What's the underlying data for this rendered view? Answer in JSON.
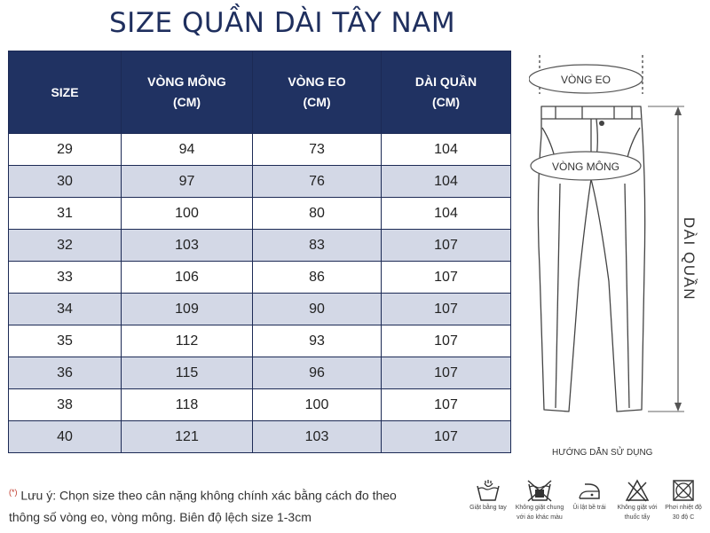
{
  "title": "SIZE QUẦN DÀI TÂY NAM",
  "table": {
    "headers": [
      {
        "line1": "SIZE",
        "line2": ""
      },
      {
        "line1": "VÒNG MÔNG",
        "line2": "(CM)"
      },
      {
        "line1": "VÒNG EO",
        "line2": "(CM)"
      },
      {
        "line1": "DÀI QUẦN",
        "line2": "(CM)"
      }
    ],
    "rows": [
      [
        "29",
        "94",
        "73",
        "104"
      ],
      [
        "30",
        "97",
        "76",
        "104"
      ],
      [
        "31",
        "100",
        "80",
        "104"
      ],
      [
        "32",
        "103",
        "83",
        "107"
      ],
      [
        "33",
        "106",
        "86",
        "107"
      ],
      [
        "34",
        "109",
        "90",
        "107"
      ],
      [
        "35",
        "112",
        "93",
        "107"
      ],
      [
        "36",
        "115",
        "96",
        "107"
      ],
      [
        "38",
        "118",
        "100",
        "107"
      ],
      [
        "40",
        "121",
        "103",
        "107"
      ]
    ]
  },
  "diagram": {
    "waist_label": "VÒNG EO",
    "hip_label": "VÒNG MÔNG",
    "length_label": "DÀI QUẦN"
  },
  "guide_title": "HƯỚNG DẪN SỬ DỤNG",
  "note": {
    "mark": "(*)",
    "line1": "Lưu ý: Chọn size theo cân nặng không chính xác bằng cách đo theo",
    "line2": "thông số vòng eo, vòng mông. Biên độ lệch size 1-3cm"
  },
  "care": [
    {
      "icon": "hand-wash-icon",
      "line1": "Giặt bằng tay",
      "line2": ""
    },
    {
      "icon": "no-wash-with-colors-icon",
      "line1": "Không giặt chung",
      "line2": "với áo khác màu"
    },
    {
      "icon": "iron-inside-out-icon",
      "line1": "Ủi lật bề trái",
      "line2": ""
    },
    {
      "icon": "no-bleach-icon",
      "line1": "Không giặt với",
      "line2": "thuốc tẩy"
    },
    {
      "icon": "dry-in-shade-icon",
      "line1": "Phơi nhiệt độ",
      "line2": "30 độ C"
    }
  ],
  "colors": {
    "header_bg": "#203262",
    "title": "#1f2f5e",
    "alt_row": "#d3d8e6"
  }
}
